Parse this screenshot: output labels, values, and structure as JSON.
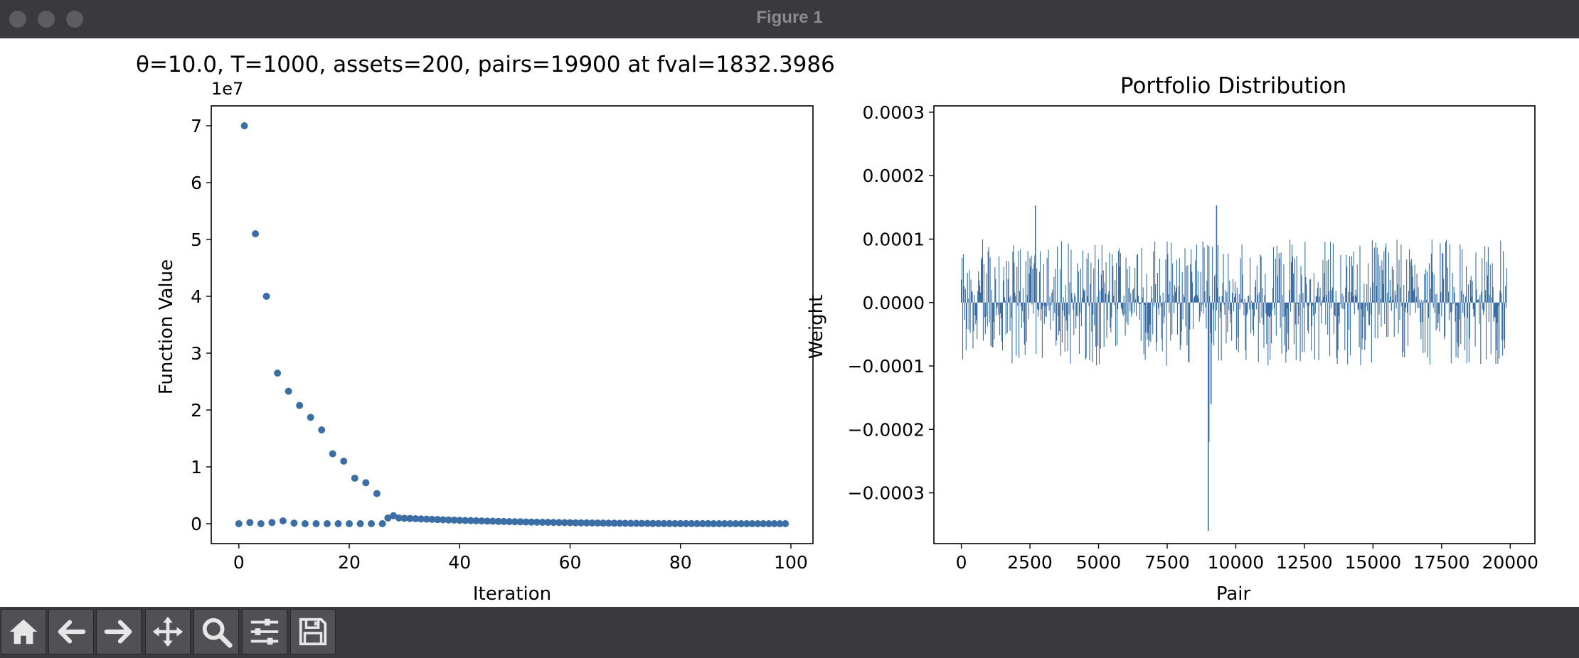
{
  "window": {
    "title": "Figure 1"
  },
  "toolbar": {
    "buttons": [
      {
        "icon": "home-icon"
      },
      {
        "icon": "back-arrow-icon"
      },
      {
        "icon": "forward-arrow-icon"
      },
      {
        "icon": "pan-move-icon"
      },
      {
        "icon": "zoom-magnifier-icon"
      },
      {
        "icon": "configure-subplots-icon"
      },
      {
        "icon": "save-floppy-icon"
      }
    ]
  },
  "chart_data": [
    {
      "type": "scatter",
      "title": "θ=10.0, T=1000, assets=200, pairs=19900 at fval=1832.3986",
      "xlabel": "Iteration",
      "ylabel": "Function Value",
      "y_offset_label": "1e7",
      "xlim": [
        -5,
        104
      ],
      "ylim": [
        -3500000,
        73500000
      ],
      "xticks": [
        0,
        20,
        40,
        60,
        80,
        100
      ],
      "yticks": [
        0,
        10000000,
        20000000,
        30000000,
        40000000,
        50000000,
        60000000,
        70000000
      ],
      "ytick_labels": [
        "0",
        "1",
        "2",
        "3",
        "4",
        "5",
        "6",
        "7"
      ],
      "grid": false,
      "color": "#3a6ea5",
      "series_high": {
        "x": [
          1,
          3,
          5,
          7,
          9,
          11,
          13,
          15,
          17,
          19,
          21,
          23,
          25,
          27
        ],
        "y": [
          70000000,
          51000000,
          40000000,
          26500000,
          23300000,
          20800000,
          18700000,
          16500000,
          12300000,
          11000000,
          8000000,
          7200000,
          5300000,
          1000000
        ]
      },
      "series_low": {
        "x": [
          0,
          2,
          4,
          6,
          8,
          10,
          12,
          14,
          16,
          18,
          20,
          22,
          24,
          26,
          28
        ],
        "y": [
          0,
          200000,
          0,
          200000,
          500000,
          100000,
          0,
          0,
          0,
          0,
          0,
          0,
          0,
          0,
          1400000
        ]
      },
      "series_tail": {
        "x_start": 29,
        "x_end": 99,
        "y_start": 1000000,
        "y_end": 0
      }
    },
    {
      "type": "bar",
      "title": "Portfolio Distribution",
      "xlabel": "Pair",
      "ylabel": "Weight",
      "xlim": [
        -1000,
        20900
      ],
      "ylim": [
        -0.00038,
        0.00031
      ],
      "xticks": [
        0,
        2500,
        5000,
        7500,
        10000,
        12500,
        15000,
        17500,
        20000
      ],
      "yticks": [
        -0.0003,
        -0.0002,
        -0.0001,
        0.0,
        0.0001,
        0.0002,
        0.0003
      ],
      "ytick_labels": [
        "−0.0003",
        "−0.0002",
        "−0.0001",
        "0.0000",
        "0.0001",
        "0.0002",
        "0.0003"
      ],
      "n_pairs": 19900,
      "typical_range": [
        -0.0001,
        0.0001
      ],
      "grid": false,
      "color": "#3a6ea5",
      "notable": [
        {
          "x": 9000,
          "y": -0.00036
        },
        {
          "x": 9020,
          "y": -0.00022
        },
        {
          "x": 9300,
          "y": 0.000153
        },
        {
          "x": 2700,
          "y": 0.000153
        },
        {
          "x": 9100,
          "y": -0.00016
        }
      ]
    }
  ]
}
